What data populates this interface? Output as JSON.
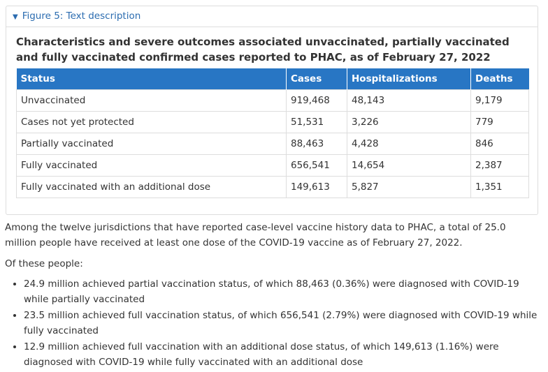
{
  "details": {
    "summary": "Figure 5: Text description",
    "title": "Characteristics and severe outcomes associated unvaccinated, partially vaccinated and fully vaccinated confirmed cases reported to PHAC, as of February 27, 2022",
    "table": {
      "headers": [
        "Status",
        "Cases",
        "Hospitalizations",
        "Deaths"
      ],
      "rows": [
        [
          "Unvaccinated",
          "919,468",
          "48,143",
          "9,179"
        ],
        [
          "Cases not yet protected",
          "51,531",
          "3,226",
          "779"
        ],
        [
          "Partially vaccinated",
          "88,463",
          "4,428",
          "846"
        ],
        [
          "Fully vaccinated",
          "656,541",
          "14,654",
          "2,387"
        ],
        [
          "Fully vaccinated with an additional dose",
          "149,613",
          "5,827",
          "1,351"
        ]
      ]
    }
  },
  "paragraph": "Among the twelve jurisdictions that have reported case-level vaccine history data to PHAC, a total of 25.0 million people have received at least one dose of the COVID-19 vaccine as of February 27, 2022.",
  "intro": "Of these people:",
  "bullets": [
    "24.9 million achieved partial vaccination status, of which 88,463 (0.36%) were diagnosed with COVID-19 while partially vaccinated",
    "23.5 million achieved full vaccination status, of which 656,541 (2.79%) were diagnosed with COVID-19 while fully vaccinated",
    "12.9 million achieved full vaccination with an additional dose status, of which 149,613 (1.16%) were diagnosed with COVID-19 while fully vaccinated with an additional dose"
  ]
}
